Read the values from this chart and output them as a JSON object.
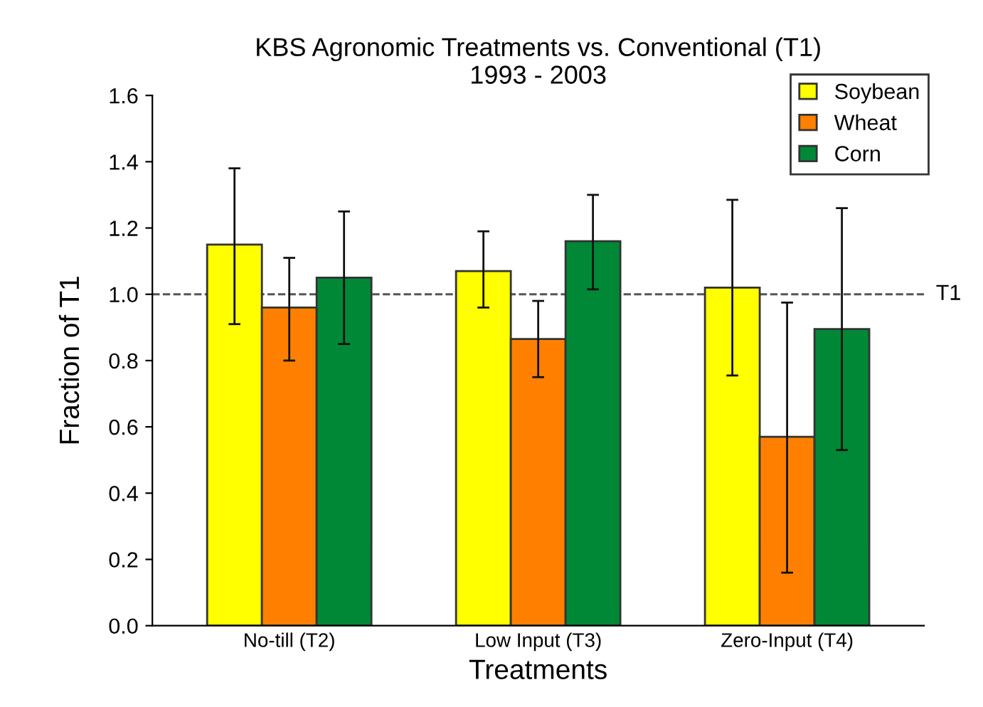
{
  "chart_data": {
    "type": "bar",
    "title": "KBS Agronomic Treatments vs. Conventional (T1)\n1993 - 2003",
    "xlabel": "Treatments",
    "ylabel": "Fraction of T1",
    "categories": [
      "No-till (T2)",
      "Low Input (T3)",
      "Zero-Input (T4)"
    ],
    "series": [
      {
        "name": "Soybean",
        "color": "#ffff00",
        "values": [
          1.15,
          1.07,
          1.02
        ],
        "errors": [
          [
            0.91,
            1.38
          ],
          [
            0.96,
            1.19
          ],
          [
            0.755,
            1.285
          ]
        ]
      },
      {
        "name": "Wheat",
        "color": "#ff8000",
        "values": [
          0.96,
          0.865,
          0.57
        ],
        "errors": [
          [
            0.8,
            1.11
          ],
          [
            0.75,
            0.98
          ],
          [
            0.16,
            0.975
          ]
        ]
      },
      {
        "name": "Corn",
        "color": "#008837",
        "values": [
          1.05,
          1.16,
          0.895
        ],
        "errors": [
          [
            0.85,
            1.25
          ],
          [
            1.015,
            1.3
          ],
          [
            0.53,
            1.26
          ]
        ]
      }
    ],
    "ylim": [
      0,
      1.6
    ],
    "yticks": [
      {
        "value": 0,
        "label": "0.0"
      },
      0.2,
      0.4,
      0.6,
      0.8,
      {
        "value": 1,
        "label": "1.0"
      },
      1.2,
      1.4,
      1.6
    ],
    "ref_lines": [
      {
        "axis": "y",
        "value": 1.0,
        "label": "T1",
        "color": "#555555",
        "line_style": "dashed"
      }
    ],
    "grid": false,
    "legend": "top right"
  }
}
